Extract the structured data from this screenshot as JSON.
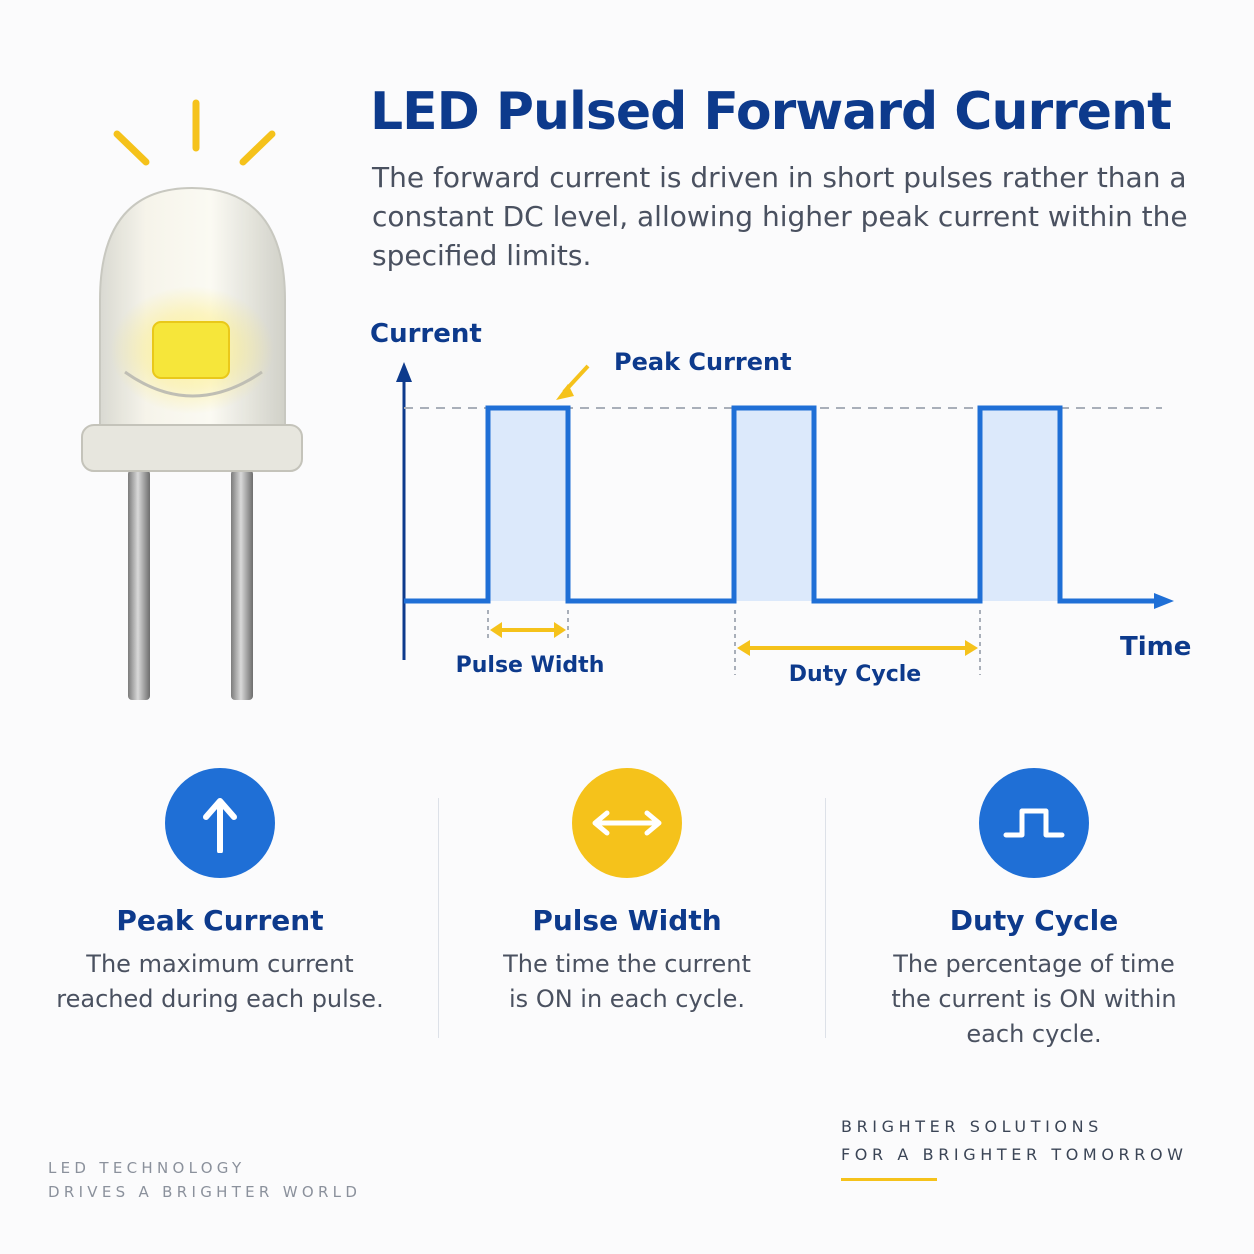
{
  "header": {
    "title": "LED Pulsed Forward Current",
    "subtitle": "The forward current is driven in short pulses rather than a constant DC level, allowing higher peak current within the specified limits."
  },
  "diagram": {
    "y_axis_label": "Current",
    "x_axis_label": "Time",
    "peak_label": "Peak Current",
    "pulse_width_label": "Pulse Width",
    "duty_cycle_label": "Duty Cycle",
    "pulse_count": 3
  },
  "cards": [
    {
      "title": "Peak Current",
      "desc_line1": "The maximum current",
      "desc_line2": "reached during each pulse.",
      "icon": "arrow-up-icon",
      "color": "#1f6fd6"
    },
    {
      "title": "Pulse Width",
      "desc_line1": "The time the current",
      "desc_line2": "is ON in each cycle.",
      "icon": "double-arrow-icon",
      "color": "#f5c21b"
    },
    {
      "title": "Duty Cycle",
      "desc_line1": "The percentage of time",
      "desc_line2": "the current is ON within",
      "desc_line3": "each cycle.",
      "icon": "pulse-wave-icon",
      "color": "#1f6fd6"
    }
  ],
  "footer": {
    "left_line1": "LED TECHNOLOGY",
    "left_line2": "DRIVES A BRIGHTER WORLD",
    "right_line1": "BRIGHTER SOLUTIONS",
    "right_line2": "FOR A BRIGHTER TOMORROW"
  },
  "colors": {
    "primary_blue": "#1f6fd6",
    "dark_navy": "#0d3a8c",
    "accent_yellow": "#f5c21b",
    "pulse_fill": "#dce9fb"
  }
}
